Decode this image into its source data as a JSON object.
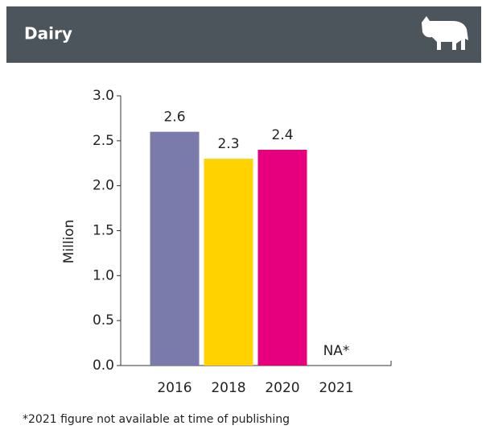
{
  "header": {
    "title": "Dairy"
  },
  "chart_data": {
    "type": "bar",
    "categories": [
      "2016",
      "2018",
      "2020",
      "2021"
    ],
    "values": [
      2.6,
      2.3,
      2.4,
      null
    ],
    "value_labels": [
      "2.6",
      "2.3",
      "2.4",
      "NA*"
    ],
    "colors": [
      "#7a7aab",
      "#ffd200",
      "#e6007e",
      null
    ],
    "y_label": "Million",
    "ylim": [
      0,
      3
    ],
    "yticks": [
      {
        "value": 0,
        "label": "0.0"
      },
      0.5,
      {
        "value": 1,
        "label": "1.0"
      },
      1.5,
      {
        "value": 2,
        "label": "2.0"
      },
      2.5,
      {
        "value": 3,
        "label": "3.0"
      }
    ]
  },
  "footnote": "*2021 figure not available at time of publishing"
}
